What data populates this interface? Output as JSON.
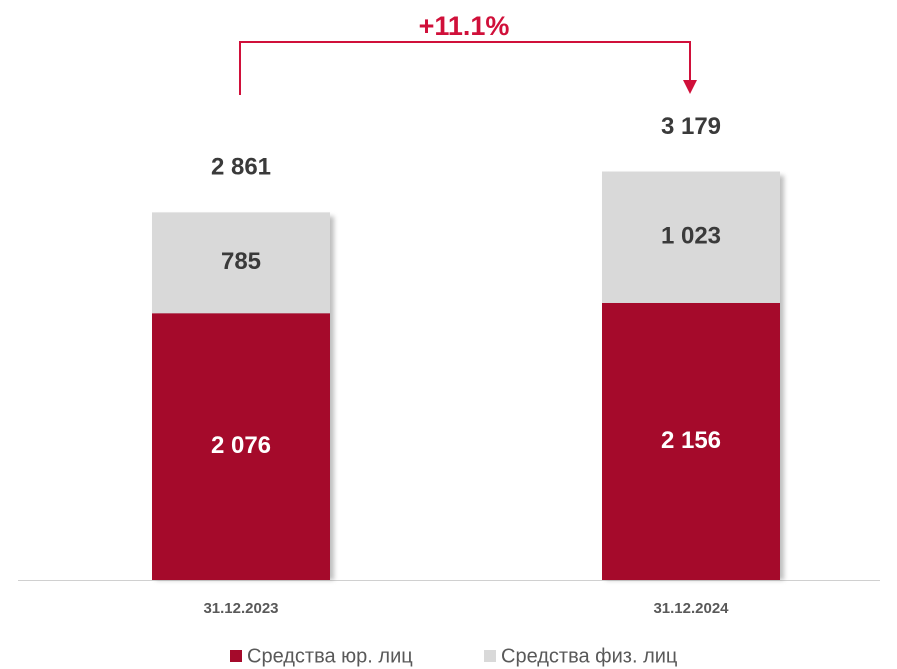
{
  "chart_data": {
    "type": "stacked-bar",
    "annotation": "+11.1%",
    "categories": [
      "31.12.2023",
      "31.12.2024"
    ],
    "series": [
      {
        "name": "Средства юр. лиц",
        "color": "#a50a2b",
        "values": [
          2076,
          2156
        ],
        "value_labels": [
          "2 076",
          "2 156"
        ]
      },
      {
        "name": "Средства физ. лиц",
        "color": "#d9d9d9",
        "values": [
          785,
          1023
        ],
        "value_labels": [
          "785",
          "1 023"
        ]
      }
    ],
    "totals": {
      "values": [
        2861,
        3179
      ],
      "value_labels": [
        "2 861",
        "3 179"
      ]
    }
  }
}
